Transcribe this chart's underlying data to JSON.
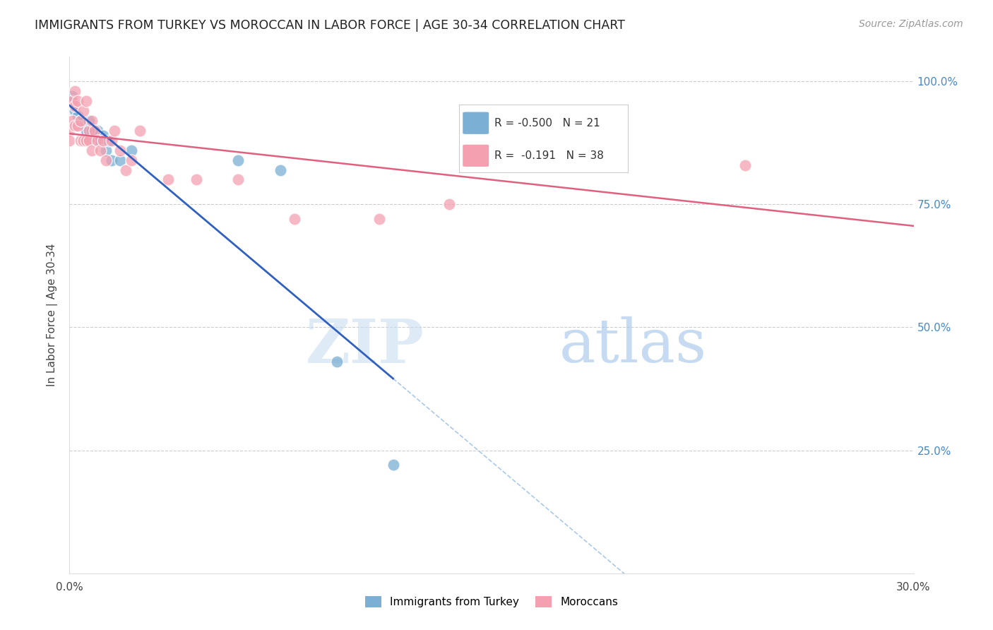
{
  "title": "IMMIGRANTS FROM TURKEY VS MOROCCAN IN LABOR FORCE | AGE 30-34 CORRELATION CHART",
  "source": "Source: ZipAtlas.com",
  "ylabel": "In Labor Force | Age 30-34",
  "xlim": [
    0.0,
    0.3
  ],
  "ylim": [
    0.0,
    1.05
  ],
  "turkey_color": "#7bafd4",
  "morocco_color": "#f4a0b0",
  "turkey_line_color": "#3060c0",
  "morocco_line_color": "#e06080",
  "dashed_line_color": "#aac8e8",
  "R_turkey": -0.5,
  "N_turkey": 21,
  "R_morocco": -0.191,
  "N_morocco": 38,
  "turkey_x": [
    0.001,
    0.002,
    0.003,
    0.004,
    0.005,
    0.006,
    0.007,
    0.008,
    0.009,
    0.01,
    0.011,
    0.012,
    0.013,
    0.014,
    0.015,
    0.018,
    0.022,
    0.06,
    0.075,
    0.095,
    0.115
  ],
  "turkey_y": [
    0.97,
    0.94,
    0.93,
    0.92,
    0.91,
    0.9,
    0.92,
    0.9,
    0.88,
    0.9,
    0.88,
    0.89,
    0.86,
    0.88,
    0.84,
    0.84,
    0.86,
    0.84,
    0.82,
    0.43,
    0.22
  ],
  "morocco_x": [
    0.0,
    0.0,
    0.001,
    0.001,
    0.002,
    0.002,
    0.002,
    0.003,
    0.003,
    0.004,
    0.004,
    0.005,
    0.005,
    0.006,
    0.006,
    0.007,
    0.007,
    0.008,
    0.008,
    0.009,
    0.01,
    0.011,
    0.012,
    0.013,
    0.015,
    0.016,
    0.018,
    0.02,
    0.022,
    0.025,
    0.035,
    0.045,
    0.06,
    0.08,
    0.11,
    0.135,
    0.185,
    0.24
  ],
  "morocco_y": [
    0.9,
    0.88,
    0.96,
    0.92,
    0.98,
    0.95,
    0.91,
    0.96,
    0.91,
    0.92,
    0.88,
    0.94,
    0.88,
    0.88,
    0.96,
    0.9,
    0.88,
    0.92,
    0.86,
    0.9,
    0.88,
    0.86,
    0.88,
    0.84,
    0.88,
    0.9,
    0.86,
    0.82,
    0.84,
    0.9,
    0.8,
    0.8,
    0.8,
    0.72,
    0.72,
    0.75,
    0.88,
    0.83
  ],
  "watermark_zip": "ZIP",
  "watermark_atlas": "atlas",
  "legend_label_turkey": "Immigrants from Turkey",
  "legend_label_morocco": "Moroccans",
  "background_color": "#ffffff",
  "grid_color": "#cccccc",
  "right_axis_color": "#4488cc",
  "legend_R_color": "#cc3355",
  "turkey_line_x_end": 0.115,
  "dashed_line_x_start": 0.115,
  "dashed_line_x_end": 0.305
}
